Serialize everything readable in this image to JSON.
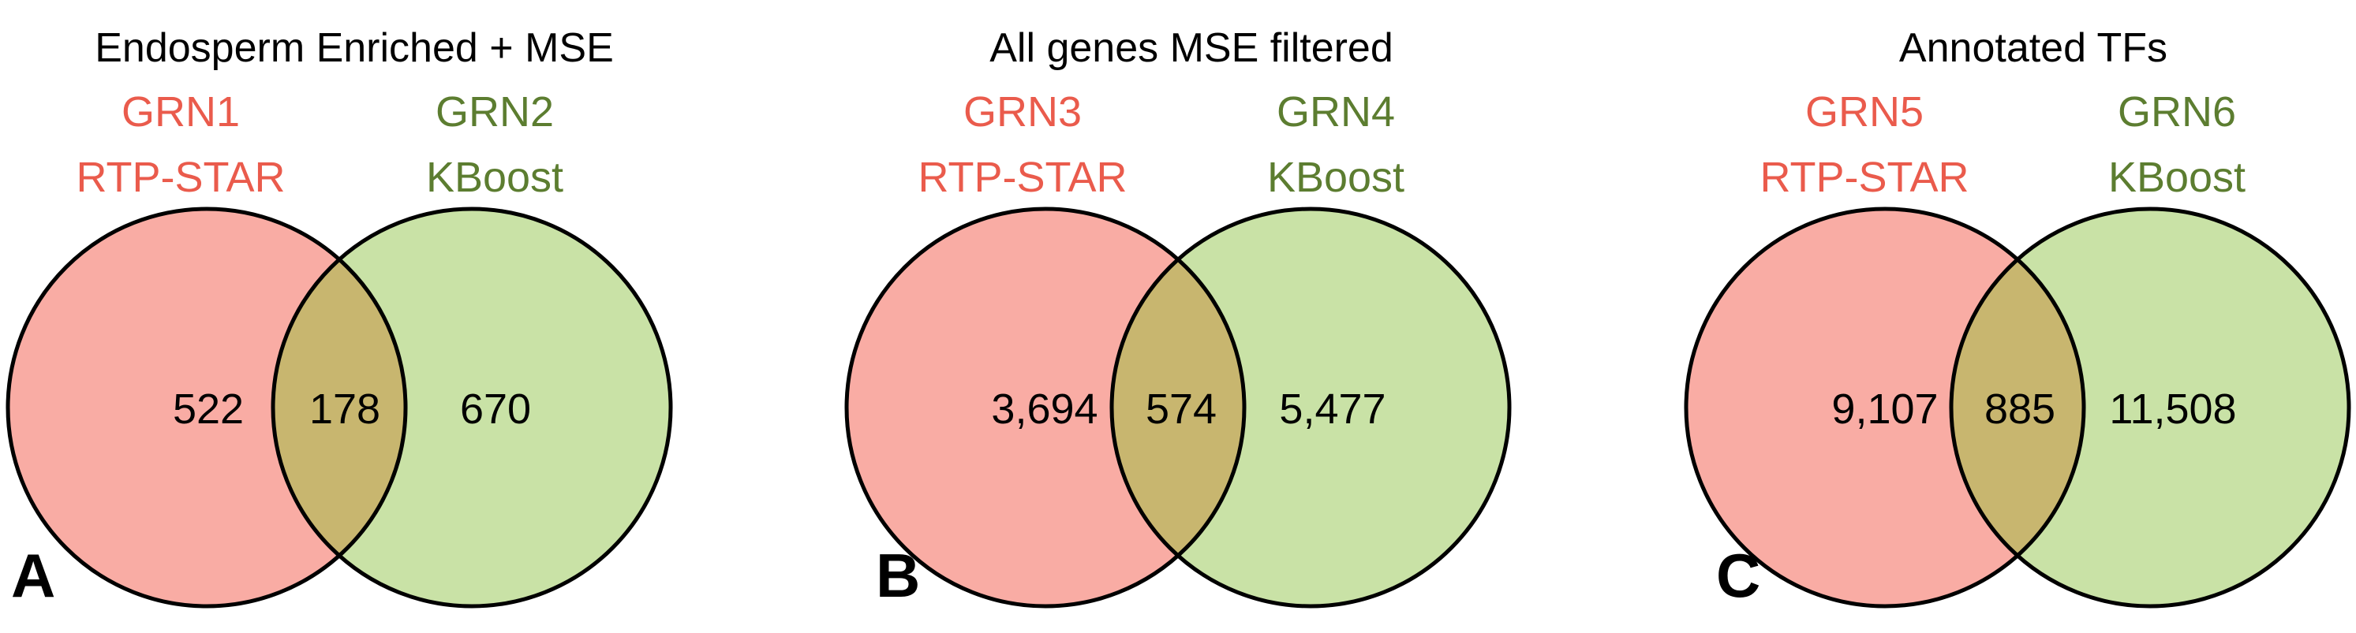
{
  "colors": {
    "left_fill": "#f9aca4",
    "right_fill": "#c9e2a6",
    "overlap_fill": "#c8b66f",
    "left_label": "#ea5b4c",
    "right_label": "#5c7d30",
    "outline": "#000000"
  },
  "panels": [
    {
      "letter": "A",
      "title": "Endosperm Enriched + MSE",
      "left_set": {
        "name": "GRN1",
        "method": "RTP-STAR"
      },
      "right_set": {
        "name": "GRN2",
        "method": "KBoost"
      },
      "counts": {
        "left_only": "522",
        "overlap": "178",
        "right_only": "670"
      }
    },
    {
      "letter": "B",
      "title": "All genes MSE filtered",
      "left_set": {
        "name": "GRN3",
        "method": "RTP-STAR"
      },
      "right_set": {
        "name": "GRN4",
        "method": "KBoost"
      },
      "counts": {
        "left_only": "3,694",
        "overlap": "574",
        "right_only": "5,477"
      }
    },
    {
      "letter": "C",
      "title": "Annotated TFs",
      "left_set": {
        "name": "GRN5",
        "method": "RTP-STAR"
      },
      "right_set": {
        "name": "GRN6",
        "method": "KBoost"
      },
      "counts": {
        "left_only": "9,107",
        "overlap": "885",
        "right_only": "11,508"
      }
    }
  ]
}
